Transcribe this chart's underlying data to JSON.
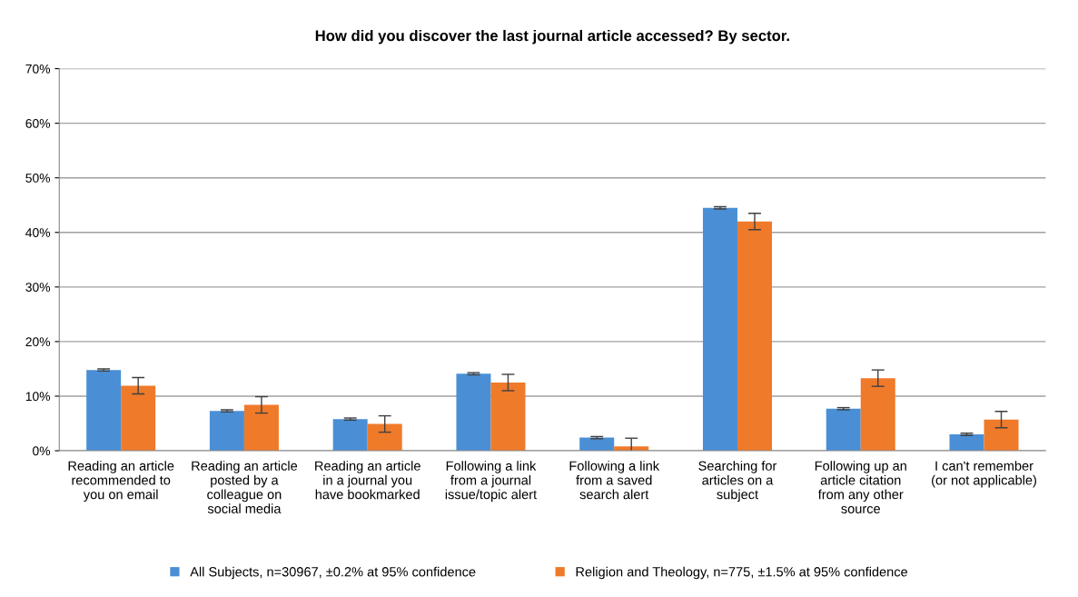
{
  "chart_data": {
    "type": "bar",
    "title": "How did you discover the last journal article accessed? By sector.",
    "categories": [
      "Reading an article\nrecommended to\nyou on email",
      "Reading an article\nposted by a\ncolleague on\nsocial media",
      "Reading an article\nin a journal you\nhave bookmarked",
      "Following a link\nfrom a journal\nissue/topic alert",
      "Following a link\nfrom a saved\nsearch alert",
      "Searching for\narticles on a\nsubject",
      "Following up an\narticle citation\nfrom any other\nsource",
      "I can't remember\n(or not applicable)"
    ],
    "series": [
      {
        "name": "All Subjects, n=30967, ±0.2% at 95% confidence",
        "color": "#4a8fd6",
        "values": [
          14.8,
          7.3,
          5.8,
          14.1,
          2.4,
          44.5,
          7.7,
          3.0
        ],
        "errors": [
          0.2,
          0.2,
          0.2,
          0.2,
          0.2,
          0.2,
          0.2,
          0.2
        ]
      },
      {
        "name": "Religion and Theology, n=775, ±1.5% at 95% confidence",
        "color": "#ef7a2a",
        "values": [
          11.9,
          8.4,
          4.9,
          12.5,
          0.8,
          42.0,
          13.3,
          5.7
        ],
        "errors": [
          1.5,
          1.5,
          1.5,
          1.5,
          1.5,
          1.5,
          1.5,
          1.5
        ]
      }
    ],
    "ylim": [
      0,
      70
    ],
    "yticks": [
      {
        "value": 0,
        "label": "0%"
      },
      {
        "value": 10,
        "label": "10%"
      },
      {
        "value": 20,
        "label": "20%"
      },
      {
        "value": 30,
        "label": "30%"
      },
      {
        "value": 40,
        "label": "40%"
      },
      {
        "value": 50,
        "label": "50%"
      },
      {
        "value": 60,
        "label": "60%"
      },
      {
        "value": 70,
        "label": "70%"
      }
    ],
    "grid": "y",
    "legend": "bottom"
  }
}
